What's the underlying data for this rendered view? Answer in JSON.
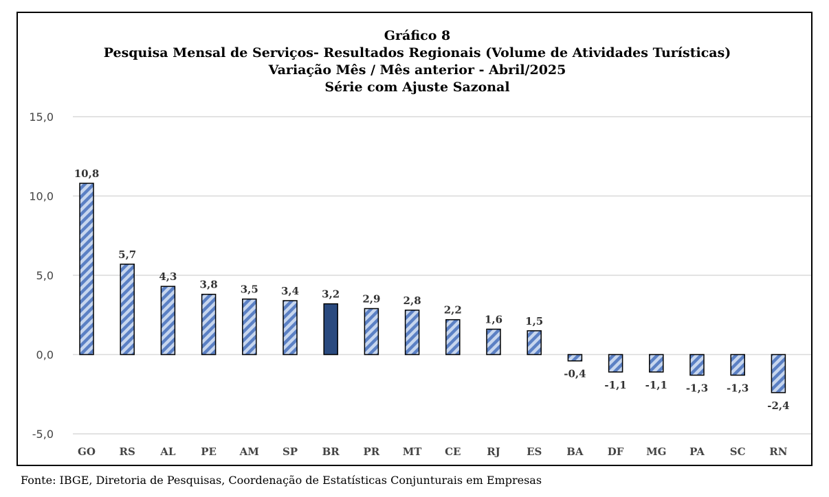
{
  "chart_data": {
    "type": "bar",
    "title": "Gráfico 8",
    "subtitle_lines": [
      "Pesquisa Mensal de Serviços- Resultados Regionais (Volume de Atividades Turísticas)",
      "Variação Mês / Mês anterior - Abril/2025",
      "Série com Ajuste Sazonal"
    ],
    "categories": [
      "GO",
      "RS",
      "AL",
      "PE",
      "AM",
      "SP",
      "BR",
      "PR",
      "MT",
      "CE",
      "RJ",
      "ES",
      "BA",
      "DF",
      "MG",
      "PA",
      "SC",
      "RN"
    ],
    "values": [
      10.8,
      5.7,
      4.3,
      3.8,
      3.5,
      3.4,
      3.2,
      2.9,
      2.8,
      2.2,
      1.6,
      1.5,
      -0.4,
      -1.1,
      -1.1,
      -1.3,
      -1.3,
      -2.4
    ],
    "value_labels": [
      "10,8",
      "5,7",
      "4,3",
      "3,8",
      "3,5",
      "3,4",
      "3,2",
      "2,9",
      "2,8",
      "2,2",
      "1,6",
      "1,5",
      "-0,4",
      "-1,1",
      "-1,1",
      "-1,3",
      "-1,3",
      "-2,4"
    ],
    "yticks": [
      15,
      10,
      5,
      0,
      -5
    ],
    "ytick_labels": [
      "15,0",
      "10,0",
      "5,0",
      "0,0",
      "-5,0"
    ],
    "ylim": [
      -5,
      15
    ],
    "xlabel": "",
    "ylabel": "",
    "grid": true,
    "highlight_category": "BR",
    "colors": {
      "bar_stripe_light": "#c7d6ee",
      "bar_stripe_dark": "#5b80c4",
      "highlight": "#2a4a7f",
      "grid": "#d9d9d9",
      "bar_outline": "#000000"
    }
  },
  "source_note": "Fonte: IBGE, Diretoria de Pesquisas, Coordenação de Estatísticas Conjunturais em Empresas"
}
